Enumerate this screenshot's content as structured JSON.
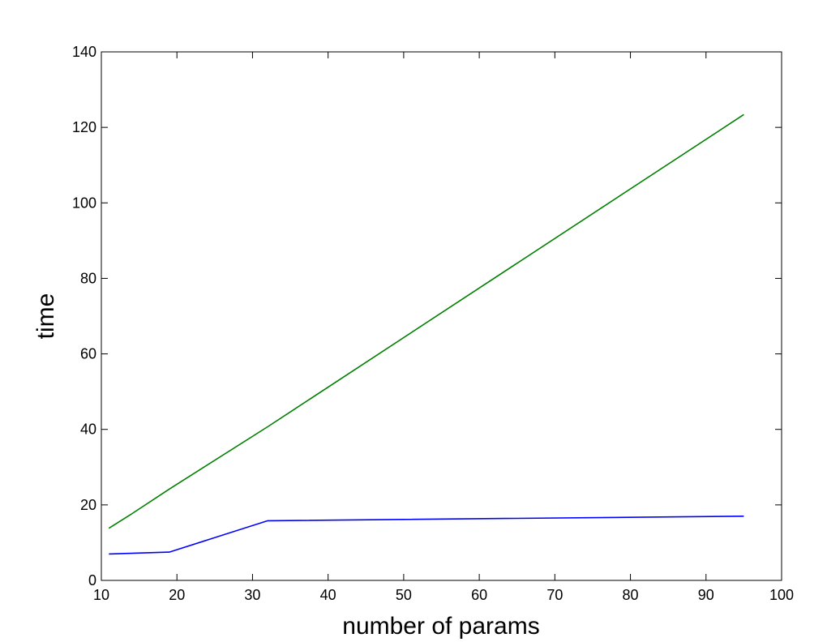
{
  "chart_data": {
    "type": "line",
    "title": "",
    "xlabel": "number of params",
    "ylabel": "time",
    "xlim": [
      10,
      100
    ],
    "ylim": [
      0,
      140
    ],
    "xticks": [
      10,
      20,
      30,
      40,
      50,
      60,
      70,
      80,
      90,
      100
    ],
    "yticks": [
      0,
      20,
      40,
      60,
      80,
      100,
      120,
      140
    ],
    "grid": false,
    "legend": "none",
    "series": [
      {
        "color": "#008000",
        "x": [
          11,
          14,
          19,
          32,
          95
        ],
        "y": [
          13.8,
          17.6,
          24.2,
          40.7,
          123.4
        ]
      },
      {
        "color": "#0000ff",
        "x": [
          11,
          19,
          32,
          95
        ],
        "y": [
          7.0,
          7.5,
          15.8,
          17.0
        ]
      }
    ]
  }
}
